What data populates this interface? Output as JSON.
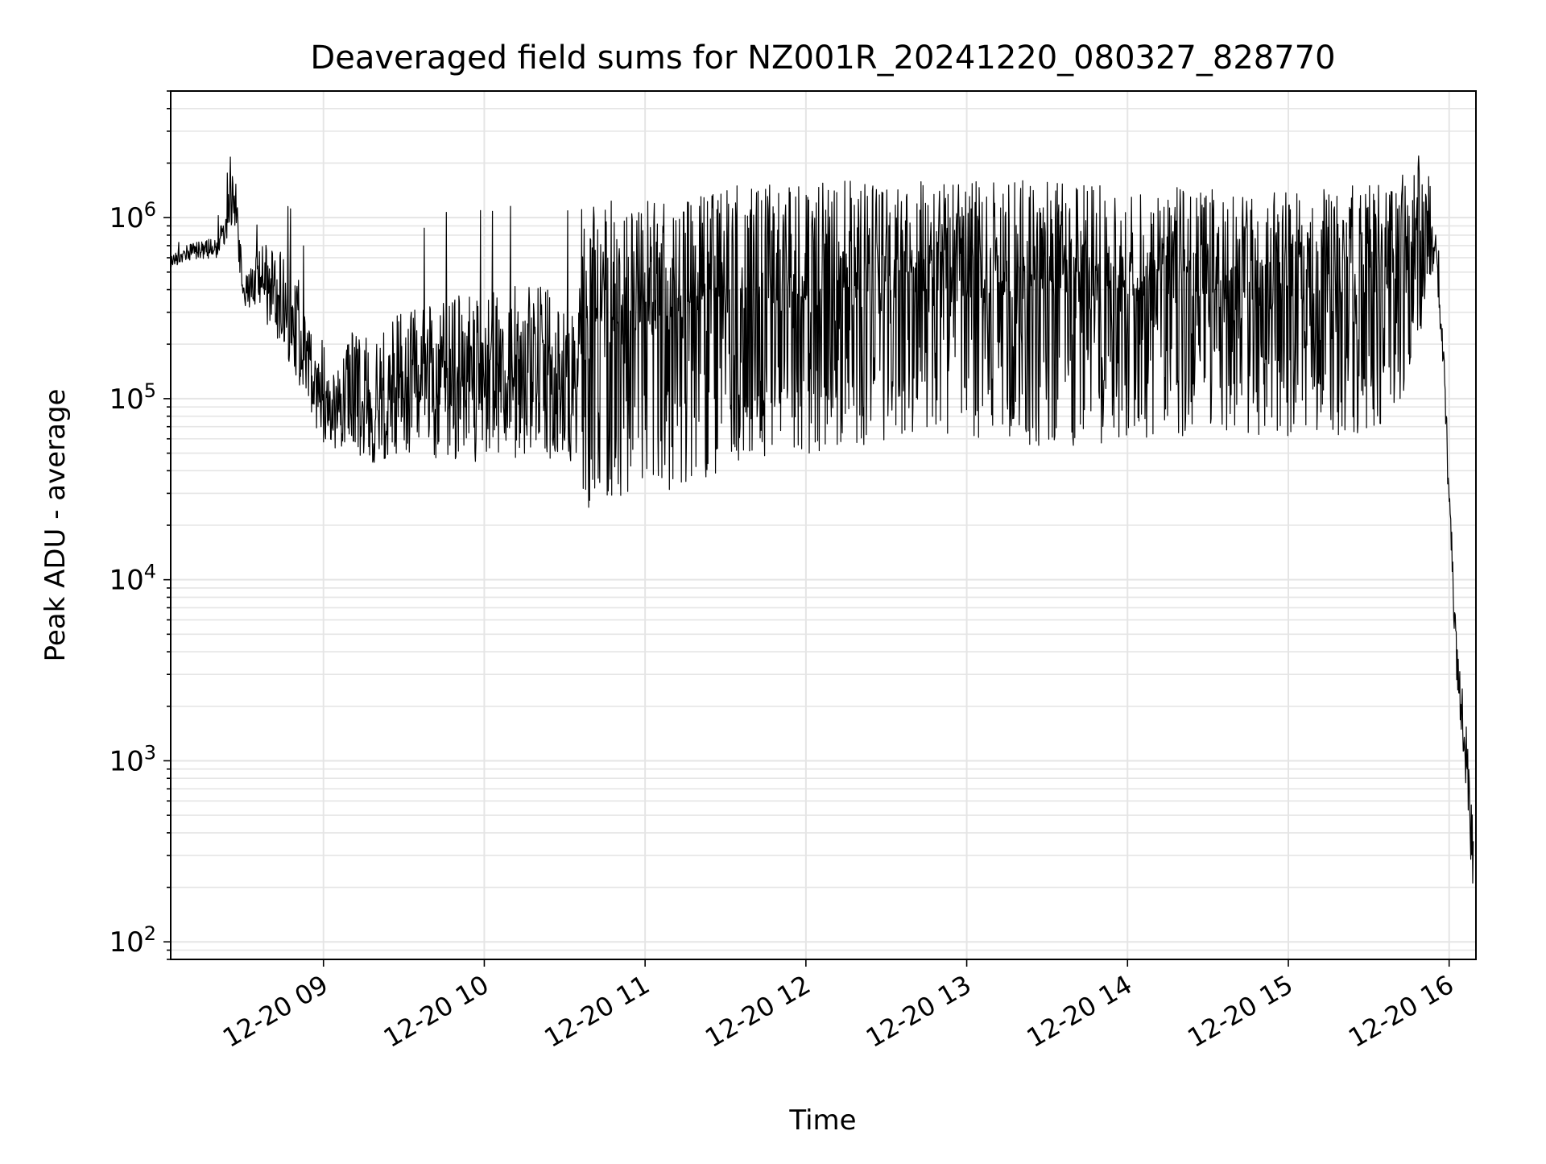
{
  "chart_data": {
    "type": "line",
    "title": "Deaveraged field sums for NZ001R_20241220_080327_828770",
    "xlabel": "Time",
    "ylabel": "Peak ADU - average",
    "yscale": "log",
    "ylim": [
      80,
      5000000
    ],
    "xlim": [
      "2024-12-20 08:03",
      "2024-12-20 16:10"
    ],
    "grid": true,
    "x_ticks": [
      "12-20 09",
      "12-20 10",
      "12-20 11",
      "12-20 12",
      "12-20 13",
      "12-20 14",
      "12-20 15",
      "12-20 16"
    ],
    "y_ticks": [
      100,
      1000,
      10000,
      100000,
      1000000
    ],
    "line_color": "#000000",
    "series": [
      {
        "x": [
          "2024-12-20 08:03",
          "2024-12-20 08:10",
          "2024-12-20 08:20",
          "2024-12-20 08:27",
          "2024-12-20 08:30",
          "2024-12-20 08:40",
          "2024-12-20 08:50",
          "2024-12-20 09:00",
          "2024-12-20 09:10",
          "2024-12-20 09:20",
          "2024-12-20 09:30",
          "2024-12-20 09:40",
          "2024-12-20 09:50",
          "2024-12-20 10:00",
          "2024-12-20 10:10",
          "2024-12-20 10:20",
          "2024-12-20 10:30",
          "2024-12-20 10:40",
          "2024-12-20 10:50",
          "2024-12-20 11:00",
          "2024-12-20 11:10",
          "2024-12-20 11:20",
          "2024-12-20 11:30",
          "2024-12-20 11:40",
          "2024-12-20 11:50",
          "2024-12-20 12:00",
          "2024-12-20 12:15",
          "2024-12-20 12:30",
          "2024-12-20 12:45",
          "2024-12-20 13:00",
          "2024-12-20 13:15",
          "2024-12-20 13:30",
          "2024-12-20 13:45",
          "2024-12-20 14:00",
          "2024-12-20 14:15",
          "2024-12-20 14:30",
          "2024-12-20 14:45",
          "2024-12-20 15:00",
          "2024-12-20 15:15",
          "2024-12-20 15:30",
          "2024-12-20 15:40",
          "2024-12-20 15:50",
          "2024-12-20 15:55",
          "2024-12-20 15:58",
          "2024-12-20 16:00",
          "2024-12-20 16:03",
          "2024-12-20 16:06",
          "2024-12-20 16:09"
        ],
        "upper": [
          700000,
          800000,
          900000,
          3000000,
          600000,
          1500000,
          1100000,
          200000,
          550000,
          550000,
          1000000,
          1000000,
          1200000,
          1200000,
          1400000,
          1400000,
          1200000,
          1200000,
          1250000,
          1300000,
          1300000,
          1400000,
          1500000,
          1500000,
          1600000,
          1600000,
          1700000,
          1600000,
          1600000,
          1700000,
          1600000,
          1600000,
          1500000,
          1500000,
          1500000,
          1500000,
          1500000,
          1500000,
          1500000,
          1500000,
          1550000,
          2600000,
          1100000,
          300000,
          50000,
          6000,
          3000,
          800
        ],
        "lower": [
          500000,
          550000,
          550000,
          700000,
          300000,
          180000,
          80000,
          45000,
          32000,
          28000,
          28000,
          27000,
          25000,
          25000,
          25000,
          26000,
          25000,
          25000,
          26000,
          28000,
          30000,
          35000,
          40000,
          45000,
          50000,
          45000,
          55000,
          55000,
          60000,
          55000,
          55000,
          55000,
          55000,
          60000,
          60000,
          60000,
          60000,
          60000,
          60000,
          65000,
          80000,
          200000,
          500000,
          100000,
          18000,
          2000,
          600,
          130
        ]
      }
    ]
  }
}
